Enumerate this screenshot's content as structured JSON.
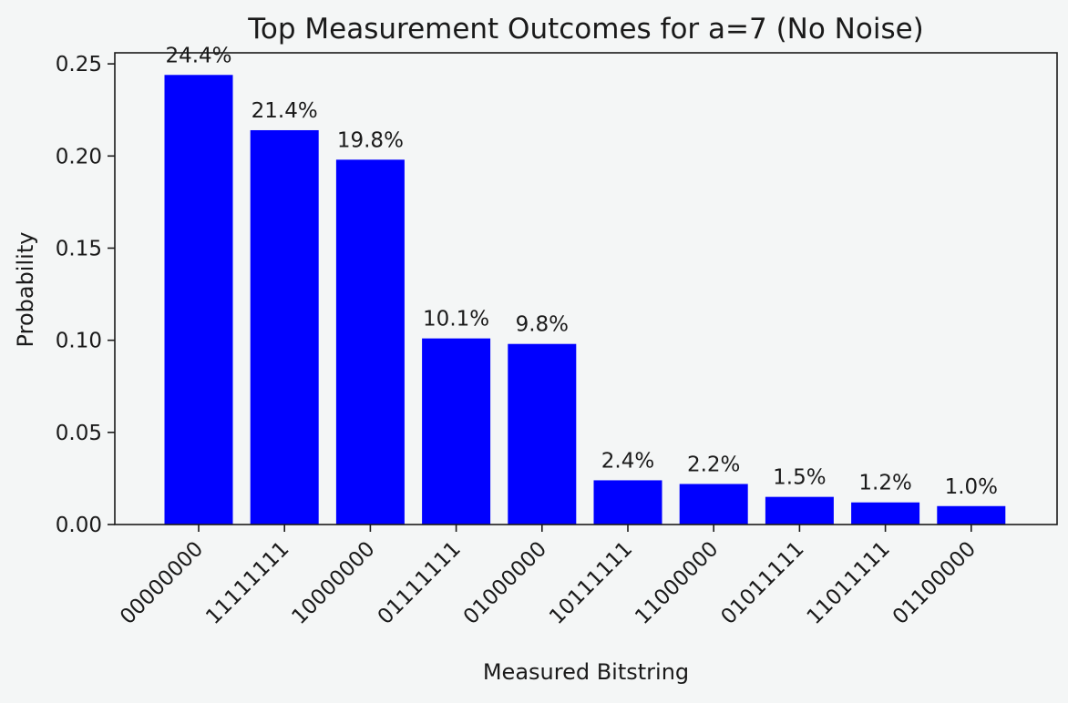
{
  "chart_data": {
    "type": "bar",
    "title": "Top Measurement Outcomes for a=7 (No Noise)",
    "xlabel": "Measured Bitstring",
    "ylabel": "Probability",
    "categories": [
      "00000000",
      "11111111",
      "10000000",
      "01111111",
      "01000000",
      "10111111",
      "11000000",
      "01011111",
      "11011111",
      "01100000"
    ],
    "values": [
      0.244,
      0.214,
      0.198,
      0.101,
      0.098,
      0.024,
      0.022,
      0.015,
      0.012,
      0.01
    ],
    "data_labels": [
      "24.4%",
      "21.4%",
      "19.8%",
      "10.1%",
      "9.8%",
      "2.4%",
      "2.2%",
      "1.5%",
      "1.2%",
      "1.0%"
    ],
    "ylim": [
      0,
      0.256
    ],
    "yticks": [
      0.0,
      0.05,
      0.1,
      0.15,
      0.2,
      0.25
    ],
    "ytick_labels": [
      "0.00",
      "0.05",
      "0.10",
      "0.15",
      "0.20",
      "0.25"
    ],
    "bar_color": "#0000ff",
    "grid": false,
    "legend": "none"
  }
}
